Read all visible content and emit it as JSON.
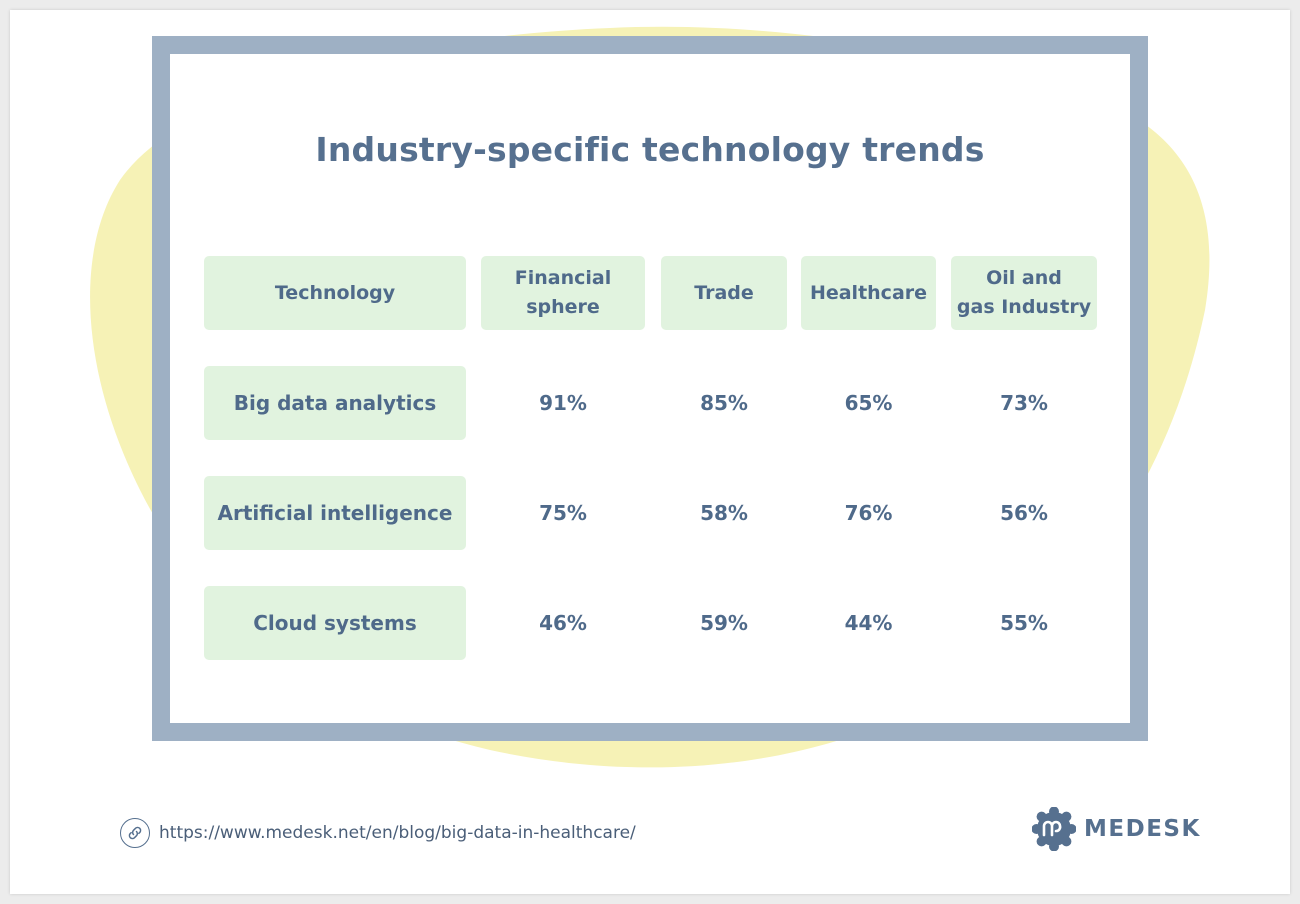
{
  "title": "Industry-specific technology trends",
  "chart_data": {
    "type": "table",
    "title": "Industry-specific technology trends",
    "columns": [
      "Technology",
      "Financial sphere",
      "Trade",
      "Healthcare",
      "Oil and gas Industry"
    ],
    "header_lines": [
      [
        "Technology"
      ],
      [
        "Financial",
        "sphere"
      ],
      [
        "Trade"
      ],
      [
        "Healthcare"
      ],
      [
        "Oil and",
        "gas Industry"
      ]
    ],
    "rows": [
      {
        "label": "Big data analytics",
        "values": [
          "91%",
          "85%",
          "65%",
          "73%"
        ]
      },
      {
        "label": "Artificial intelligence",
        "values": [
          "75%",
          "58%",
          "76%",
          "56%"
        ]
      },
      {
        "label": "Cloud systems",
        "values": [
          "46%",
          "59%",
          "44%",
          "55%"
        ]
      }
    ]
  },
  "footer": {
    "link_icon": "link-icon",
    "url": "https://www.medesk.net/en/blog/big-data-in-healthcare/",
    "brand_logo": "medesk-logo-icon",
    "brand": "MEDESK"
  },
  "colors": {
    "frame": "#9eb0c4",
    "pill": "#e1f3df",
    "text": "#4f6a8a",
    "blob": "#f6f2b6"
  }
}
